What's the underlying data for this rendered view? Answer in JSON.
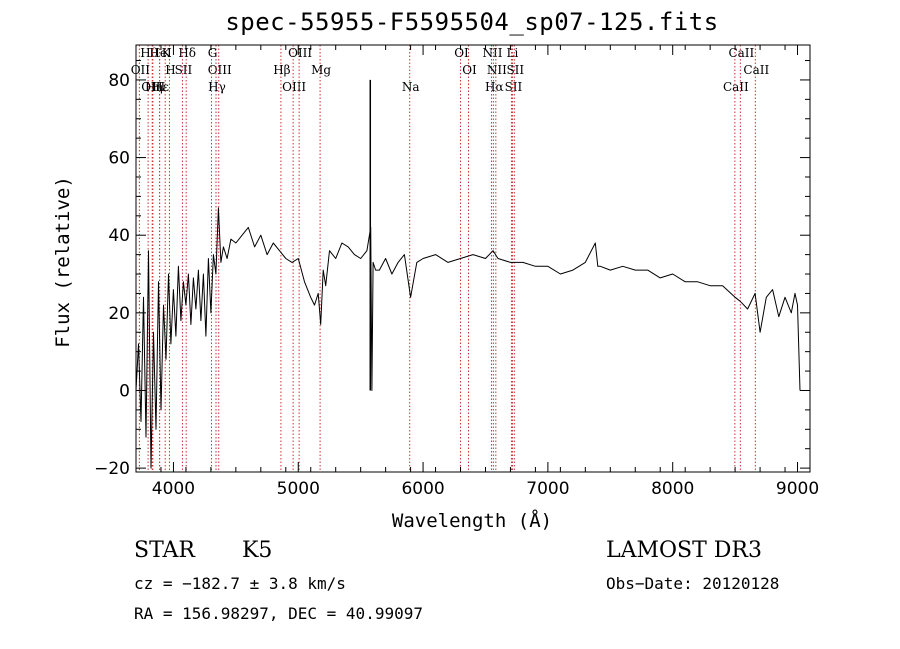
{
  "chart_data": {
    "type": "line",
    "title": "spec-55955-F5595504_sp07-125.fits",
    "xlabel": "Wavelength (Å)",
    "ylabel": "Flux (relative)",
    "xlim": [
      3700,
      9100
    ],
    "ylim": [
      -21,
      89
    ],
    "xticks": [
      4000,
      5000,
      6000,
      7000,
      8000,
      9000
    ],
    "yticks": [
      -20,
      0,
      20,
      40,
      60,
      80
    ],
    "series": [
      {
        "name": "flux",
        "x": [
          3700,
          3720,
          3740,
          3760,
          3780,
          3800,
          3820,
          3840,
          3860,
          3880,
          3900,
          3920,
          3940,
          3960,
          3980,
          4000,
          4020,
          4040,
          4060,
          4080,
          4100,
          4120,
          4140,
          4160,
          4180,
          4200,
          4220,
          4240,
          4260,
          4280,
          4300,
          4320,
          4340,
          4360,
          4380,
          4400,
          4430,
          4460,
          4500,
          4550,
          4600,
          4650,
          4700,
          4750,
          4800,
          4850,
          4900,
          4950,
          5000,
          5050,
          5100,
          5130,
          5160,
          5180,
          5200,
          5220,
          5250,
          5300,
          5350,
          5400,
          5450,
          5500,
          5550,
          5580,
          5590,
          5600,
          5620,
          5650,
          5700,
          5750,
          5800,
          5850,
          5900,
          5950,
          6000,
          6100,
          6200,
          6300,
          6400,
          6500,
          6560,
          6600,
          6700,
          6800,
          6900,
          7000,
          7100,
          7200,
          7300,
          7380,
          7400,
          7420,
          7500,
          7600,
          7700,
          7800,
          7900,
          8000,
          8100,
          8200,
          8300,
          8400,
          8500,
          8540,
          8600,
          8660,
          8700,
          8750,
          8800,
          8850,
          8900,
          8950,
          8980,
          9000,
          9020
        ],
        "y": [
          0,
          12,
          -8,
          24,
          -12,
          36,
          -20,
          15,
          -10,
          28,
          -5,
          22,
          8,
          30,
          12,
          26,
          14,
          32,
          18,
          28,
          22,
          30,
          17,
          29,
          21,
          31,
          18,
          30,
          14,
          34,
          20,
          35,
          30,
          47,
          33,
          37,
          34,
          39,
          38,
          40,
          42,
          37,
          40,
          35,
          38,
          36,
          34,
          33,
          34,
          28,
          24,
          22,
          25,
          17,
          31,
          27,
          36,
          34,
          38,
          37,
          35,
          34,
          36,
          42,
          0,
          33,
          31,
          31,
          34,
          30,
          33,
          35,
          24,
          33,
          34,
          35,
          33,
          34,
          35,
          34,
          36,
          34,
          33,
          33,
          32,
          32,
          30,
          31,
          33,
          38,
          32,
          32,
          31,
          32,
          31,
          31,
          29,
          30,
          28,
          28,
          27,
          27,
          24,
          23,
          21,
          25,
          15,
          24,
          26,
          19,
          24,
          20,
          25,
          22,
          0
        ]
      }
    ],
    "annotation_lines": [
      {
        "label": "Hθ",
        "x": 3797
      },
      {
        "label": "OII",
        "x": 3727
      },
      {
        "label": "OIII",
        "x": 3830
      },
      {
        "label": "K",
        "x": 3934
      },
      {
        "label": "H",
        "x": 3968
      },
      {
        "label": "Hε",
        "x": 3889
      },
      {
        "label": "HeI",
        "x": 3889
      },
      {
        "label": "SII",
        "x": 4072
      },
      {
        "label": "Hη",
        "x": 3835
      },
      {
        "label": "Hδ",
        "x": 4102
      },
      {
        "label": "OIII",
        "x": 4363
      },
      {
        "label": "Hγ",
        "x": 4341
      },
      {
        "label": "G",
        "x": 4305
      },
      {
        "label": "Hβ",
        "x": 4861
      },
      {
        "label": "OIII",
        "x": 4959
      },
      {
        "label": "OIII",
        "x": 5007
      },
      {
        "label": "Mg",
        "x": 5175
      },
      {
        "label": "Na",
        "x": 5893
      },
      {
        "label": "OI",
        "x": 6300
      },
      {
        "label": "OI",
        "x": 6364
      },
      {
        "label": "Hα",
        "x": 6563
      },
      {
        "label": "NII",
        "x": 6548
      },
      {
        "label": "NII",
        "x": 6583
      },
      {
        "label": "SII",
        "x": 6716
      },
      {
        "label": "Li",
        "x": 6708
      },
      {
        "label": "SII",
        "x": 6731
      },
      {
        "label": "CaII",
        "x": 8498
      },
      {
        "label": "CaII",
        "x": 8542
      },
      {
        "label": "CaII",
        "x": 8662
      }
    ]
  },
  "info": {
    "class": "STAR",
    "subclass": "K5",
    "survey": "LAMOST DR3",
    "cz": "cz = −182.7 ± 3.8 km/s",
    "obs_date": "Obs−Date: 20120128",
    "radec": "RA = 156.98297, DEC =  40.99097"
  },
  "colors": {
    "line": "#000000",
    "annotation": "#cc3333"
  }
}
